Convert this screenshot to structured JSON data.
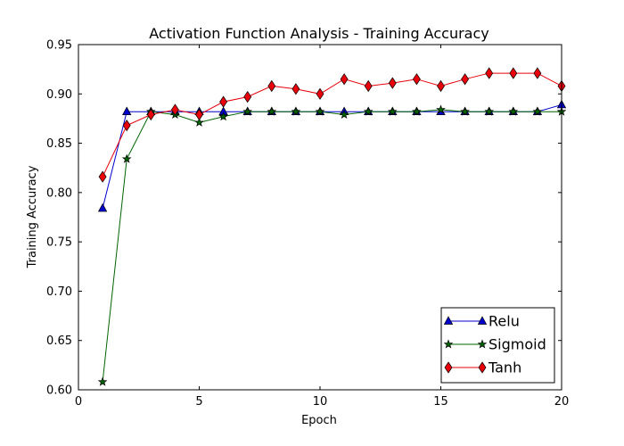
{
  "chart_data": {
    "type": "line",
    "title": "Activation Function Analysis - Training Accuracy",
    "xlabel": "Epoch",
    "ylabel": "Training Accuracy",
    "xlim": [
      0,
      20
    ],
    "ylim": [
      0.6,
      0.95
    ],
    "xticks": [
      "0",
      "5",
      "10",
      "15",
      "20"
    ],
    "yticks": [
      "0.60",
      "0.65",
      "0.70",
      "0.75",
      "0.80",
      "0.85",
      "0.90",
      "0.95"
    ],
    "grid": false,
    "legend_position": "bottom-right",
    "x": [
      1,
      2,
      3,
      4,
      5,
      6,
      7,
      8,
      9,
      10,
      11,
      12,
      13,
      14,
      15,
      16,
      17,
      18,
      19,
      20
    ],
    "series": [
      {
        "name": "Relu",
        "color": "#0000cc",
        "marker": "triangle-up",
        "values": [
          0.784,
          0.882,
          0.882,
          0.882,
          0.882,
          0.882,
          0.882,
          0.882,
          0.882,
          0.882,
          0.882,
          0.882,
          0.882,
          0.882,
          0.882,
          0.882,
          0.882,
          0.882,
          0.882,
          0.889
        ]
      },
      {
        "name": "Sigmoid",
        "color": "#006400",
        "marker": "star",
        "values": [
          0.608,
          0.834,
          0.882,
          0.879,
          0.871,
          0.877,
          0.882,
          0.882,
          0.882,
          0.882,
          0.879,
          0.882,
          0.882,
          0.882,
          0.884,
          0.882,
          0.882,
          0.882,
          0.882,
          0.882
        ]
      },
      {
        "name": "Tanh",
        "color": "#e8000b",
        "marker": "diamond",
        "values": [
          0.816,
          0.868,
          0.879,
          0.884,
          0.879,
          0.892,
          0.897,
          0.908,
          0.905,
          0.9,
          0.915,
          0.908,
          0.911,
          0.915,
          0.908,
          0.915,
          0.921,
          0.921,
          0.921,
          0.908
        ]
      }
    ]
  }
}
